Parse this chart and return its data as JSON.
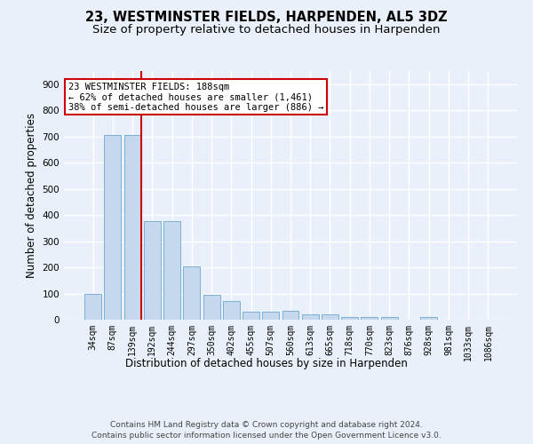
{
  "title": "23, WESTMINSTER FIELDS, HARPENDEN, AL5 3DZ",
  "subtitle": "Size of property relative to detached houses in Harpenden",
  "xlabel": "Distribution of detached houses by size in Harpenden",
  "ylabel": "Number of detached properties",
  "bar_labels": [
    "34sqm",
    "87sqm",
    "139sqm",
    "192sqm",
    "244sqm",
    "297sqm",
    "350sqm",
    "402sqm",
    "455sqm",
    "507sqm",
    "560sqm",
    "613sqm",
    "665sqm",
    "718sqm",
    "770sqm",
    "823sqm",
    "876sqm",
    "928sqm",
    "981sqm",
    "1033sqm",
    "1086sqm"
  ],
  "bar_values": [
    100,
    707,
    707,
    375,
    375,
    205,
    96,
    72,
    30,
    30,
    33,
    20,
    20,
    10,
    10,
    10,
    0,
    10,
    0,
    0,
    0
  ],
  "bar_color": "#c5d8ed",
  "bar_edge_color": "#7aafd4",
  "vline_color": "#cc0000",
  "annotation_text": "23 WESTMINSTER FIELDS: 188sqm\n← 62% of detached houses are smaller (1,461)\n38% of semi-detached houses are larger (886) →",
  "annotation_box_color": "#ffffff",
  "annotation_box_edge": "#cc0000",
  "ylim": [
    0,
    950
  ],
  "yticks": [
    0,
    100,
    200,
    300,
    400,
    500,
    600,
    700,
    800,
    900
  ],
  "footer": "Contains HM Land Registry data © Crown copyright and database right 2024.\nContains public sector information licensed under the Open Government Licence v3.0.",
  "bg_color": "#eaf0f9",
  "plot_bg_color": "#eaf0f9",
  "grid_color": "#ffffff",
  "title_fontsize": 10.5,
  "subtitle_fontsize": 9.5,
  "tick_fontsize": 7,
  "footer_fontsize": 6.5
}
